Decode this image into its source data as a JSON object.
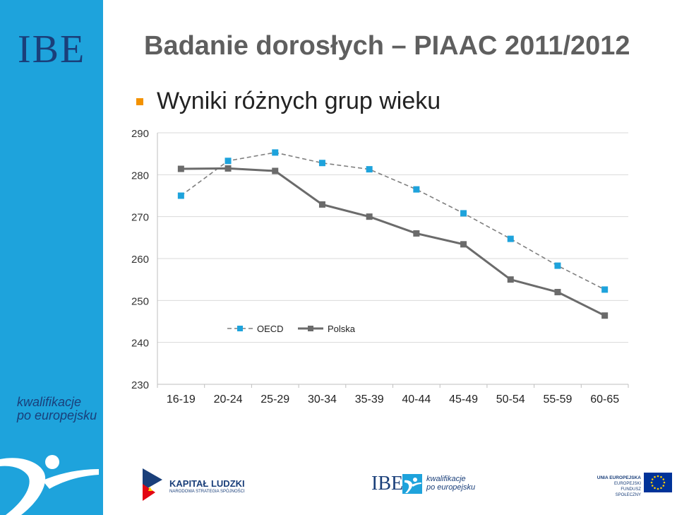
{
  "branding": {
    "sidebar_logo": "IBE",
    "sidebar_tagline_line1": "kwalifikacje",
    "sidebar_tagline_line2": "po europejsku",
    "sidebar_color": "#1ea3dc",
    "logo_text_color": "#1a3f7a"
  },
  "header": {
    "title": "Badanie dorosłych – PIAAC 2011/2012",
    "subtitle": "Wyniki różnych grup wieku",
    "bullet_color": "#f39200"
  },
  "footer": {
    "kapital_title": "KAPITAŁ LUDZKI",
    "kapital_subtitle": "NARODOWA STRATEGIA SPÓJNOŚCI",
    "mid_logo": "IBE",
    "mid_line1": "kwalifikacje",
    "mid_line2": "po europejsku",
    "eu_line1": "UNIA EUROPEJSKA",
    "eu_line2": "EUROPEJSKI",
    "eu_line3": "FUNDUSZ SPOŁECZNY"
  },
  "chart_data": {
    "type": "line",
    "categories": [
      "16-19",
      "20-24",
      "25-29",
      "30-34",
      "35-39",
      "40-44",
      "45-49",
      "50-54",
      "55-59",
      "60-65"
    ],
    "series": [
      {
        "name": "OECD",
        "values": [
          275,
          283.3,
          285.3,
          282.8,
          281.3,
          276.5,
          270.8,
          264.7,
          258.3,
          252.6
        ],
        "color": "#1ea3dc",
        "line_color": "#7f7f7f",
        "dashed": true
      },
      {
        "name": "Polska",
        "values": [
          281.4,
          281.5,
          280.9,
          272.9,
          270,
          266,
          263.4,
          255,
          252,
          246.4
        ],
        "color": "#6b6b6b",
        "line_color": "#6b6b6b",
        "dashed": false
      }
    ],
    "ylim": [
      230,
      290
    ],
    "yticks": [
      230,
      240,
      250,
      260,
      270,
      280,
      290
    ],
    "grid": true,
    "legend": "inside-lower-left"
  }
}
